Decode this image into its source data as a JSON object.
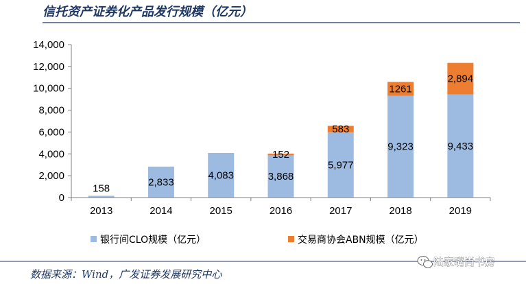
{
  "title": "信托资产证券化产品发行规模（亿元）",
  "source": "数据来源：Wind，广发证券发展研究中心",
  "watermark": "陆家嘴尚书房",
  "colors": {
    "title": "#1f3864",
    "rule": "#1f3864",
    "series_clo": "#9dbbe0",
    "series_abn": "#ed7d31",
    "axis": "#7f7f7f"
  },
  "chart_data": {
    "type": "bar",
    "stacked": true,
    "categories": [
      "2013",
      "2014",
      "2015",
      "2016",
      "2017",
      "2018",
      "2019"
    ],
    "series": [
      {
        "name": "银行间CLO规模（亿元）",
        "values": [
          158,
          2833,
          4083,
          3868,
          5977,
          9323,
          9433
        ],
        "labels": [
          "158",
          "2,833",
          "4,083",
          "3,868",
          "5,977",
          "9,323",
          "9,433"
        ]
      },
      {
        "name": "交易商协会ABN规模（亿元）",
        "values": [
          0,
          0,
          0,
          152,
          583,
          1261,
          2894
        ],
        "labels": [
          "",
          "",
          "",
          "152",
          "583",
          "1261",
          "2,894"
        ]
      }
    ],
    "ylim": [
      0,
      14000
    ],
    "yticks": [
      0,
      2000,
      4000,
      6000,
      8000,
      10000,
      12000,
      14000
    ],
    "ytick_labels": [
      "0",
      "2,000",
      "4,000",
      "6,000",
      "8,000",
      "10,000",
      "12,000",
      "14,000"
    ],
    "legend_position": "bottom",
    "grid": false
  }
}
